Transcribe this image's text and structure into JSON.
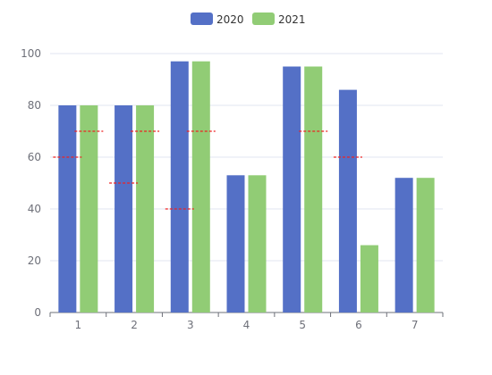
{
  "chart_data": {
    "type": "bar",
    "categories": [
      "1",
      "2",
      "3",
      "4",
      "5",
      "6",
      "7"
    ],
    "series": [
      {
        "name": "2020",
        "color": "#5470c6",
        "values": [
          80,
          80,
          97,
          53,
          95,
          86,
          52
        ]
      },
      {
        "name": "2021",
        "color": "#91cc75",
        "values": [
          80,
          80,
          97,
          53,
          95,
          26,
          52
        ]
      }
    ],
    "markers": {
      "color": "#ee2222",
      "style": "dashed",
      "series_2020_values": [
        60,
        50,
        40,
        null,
        null,
        60,
        null
      ],
      "series_2021_values": [
        70,
        70,
        70,
        null,
        70,
        null,
        null
      ]
    },
    "ylim": [
      0,
      100
    ],
    "yticks": [
      0,
      20,
      40,
      60,
      80,
      100
    ],
    "grid": true,
    "legend_position": "top-center",
    "title": "",
    "xlabel": "",
    "ylabel": ""
  }
}
